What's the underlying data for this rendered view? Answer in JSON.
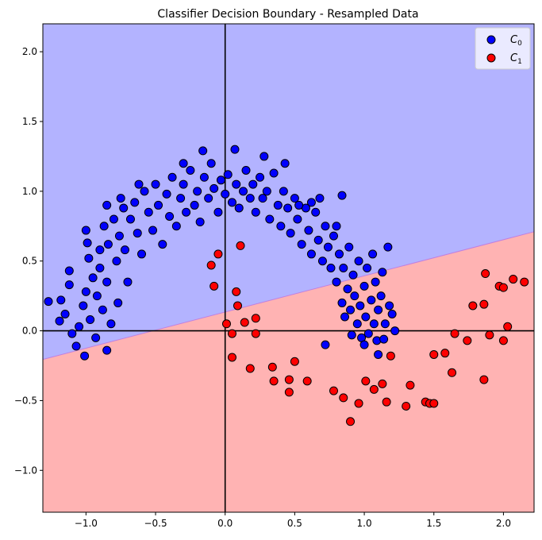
{
  "chart_data": {
    "type": "scatter",
    "title": "Classifier Decision Boundary - Resampled Data",
    "xlabel": "",
    "ylabel": "",
    "xlim": [
      -1.31,
      2.22
    ],
    "ylim": [
      -1.3,
      2.2
    ],
    "xticks": [
      "−1.0",
      "−0.5",
      "0.0",
      "0.5",
      "1.0",
      "1.5",
      "2.0"
    ],
    "xtick_values": [
      -1.0,
      -0.5,
      0.0,
      0.5,
      1.0,
      1.5,
      2.0
    ],
    "yticks": [
      "−1.0",
      "−0.5",
      "0.0",
      "0.5",
      "1.0",
      "1.5",
      "2.0"
    ],
    "ytick_values": [
      -1.0,
      -0.5,
      0.0,
      0.5,
      1.0,
      1.5,
      2.0
    ],
    "grid": false,
    "legend_position": "top-right",
    "decision_boundary": {
      "x": [
        -1.31,
        2.22
      ],
      "y": [
        -0.205,
        0.71
      ]
    },
    "region_colors": {
      "class0": "#b3b3ff",
      "class1": "#ffb3b3"
    },
    "series": [
      {
        "name": "C",
        "subscript": "0",
        "color": "#0000ff",
        "points": [
          [
            -1.27,
            0.21
          ],
          [
            -1.18,
            0.22
          ],
          [
            -1.19,
            0.07
          ],
          [
            -1.15,
            0.12
          ],
          [
            -1.12,
            0.33
          ],
          [
            -1.12,
            0.43
          ],
          [
            -1.1,
            -0.02
          ],
          [
            -1.07,
            -0.11
          ],
          [
            -1.05,
            0.03
          ],
          [
            -1.02,
            0.18
          ],
          [
            -1.01,
            -0.18
          ],
          [
            -1.0,
            0.28
          ],
          [
            -0.98,
            0.52
          ],
          [
            -0.99,
            0.63
          ],
          [
            -1.0,
            0.72
          ],
          [
            -0.97,
            0.08
          ],
          [
            -0.95,
            0.38
          ],
          [
            -0.93,
            -0.05
          ],
          [
            -0.92,
            0.25
          ],
          [
            -0.9,
            0.58
          ],
          [
            -0.9,
            0.45
          ],
          [
            -0.88,
            0.15
          ],
          [
            -0.87,
            0.75
          ],
          [
            -0.85,
            0.35
          ],
          [
            -0.84,
            0.62
          ],
          [
            -0.82,
            0.05
          ],
          [
            -0.8,
            0.8
          ],
          [
            -0.78,
            0.5
          ],
          [
            -0.85,
            -0.14
          ],
          [
            -0.77,
            0.2
          ],
          [
            -0.76,
            0.68
          ],
          [
            -0.75,
            0.95
          ],
          [
            -0.73,
            0.88
          ],
          [
            -0.72,
            0.58
          ],
          [
            -0.7,
            0.35
          ],
          [
            -0.68,
            0.8
          ],
          [
            -0.65,
            0.92
          ],
          [
            -0.63,
            0.7
          ],
          [
            -0.6,
            0.55
          ],
          [
            -0.58,
            1.0
          ],
          [
            -0.55,
            0.85
          ],
          [
            -0.52,
            0.72
          ],
          [
            -0.5,
            1.05
          ],
          [
            -0.48,
            0.9
          ],
          [
            -0.45,
            0.62
          ],
          [
            -0.42,
            0.98
          ],
          [
            -0.4,
            0.82
          ],
          [
            -0.38,
            1.1
          ],
          [
            -0.35,
            0.75
          ],
          [
            -0.32,
            0.95
          ],
          [
            -0.3,
            1.05
          ],
          [
            -0.28,
            0.85
          ],
          [
            -0.25,
            1.15
          ],
          [
            -0.22,
            0.9
          ],
          [
            -0.2,
            1.0
          ],
          [
            -0.18,
            0.78
          ],
          [
            -0.15,
            1.1
          ],
          [
            -0.12,
            0.95
          ],
          [
            -0.1,
            1.2
          ],
          [
            -0.08,
            1.02
          ],
          [
            -0.05,
            0.85
          ],
          [
            -0.03,
            1.08
          ],
          [
            0.0,
            0.98
          ],
          [
            0.02,
            1.12
          ],
          [
            0.05,
            0.92
          ],
          [
            0.07,
            1.3
          ],
          [
            0.08,
            1.05
          ],
          [
            0.1,
            0.88
          ],
          [
            0.13,
            1.0
          ],
          [
            0.15,
            1.15
          ],
          [
            0.18,
            0.95
          ],
          [
            0.2,
            1.05
          ],
          [
            0.22,
            0.85
          ],
          [
            0.25,
            1.1
          ],
          [
            0.27,
            0.95
          ],
          [
            0.3,
            1.0
          ],
          [
            0.32,
            0.8
          ],
          [
            0.35,
            1.13
          ],
          [
            0.38,
            0.9
          ],
          [
            0.4,
            0.75
          ],
          [
            0.42,
            1.0
          ],
          [
            0.45,
            0.88
          ],
          [
            0.47,
            0.7
          ],
          [
            0.5,
            0.95
          ],
          [
            0.52,
            0.8
          ],
          [
            0.55,
            0.62
          ],
          [
            0.58,
            0.88
          ],
          [
            0.6,
            0.72
          ],
          [
            0.62,
            0.55
          ],
          [
            0.65,
            0.85
          ],
          [
            0.67,
            0.65
          ],
          [
            0.7,
            0.5
          ],
          [
            0.72,
            0.75
          ],
          [
            0.74,
            0.6
          ],
          [
            0.76,
            0.45
          ],
          [
            0.78,
            0.68
          ],
          [
            0.8,
            0.35
          ],
          [
            0.82,
            0.55
          ],
          [
            0.84,
            0.2
          ],
          [
            0.85,
            0.45
          ],
          [
            0.86,
            0.1
          ],
          [
            0.88,
            0.3
          ],
          [
            0.89,
            0.6
          ],
          [
            0.9,
            0.15
          ],
          [
            0.91,
            -0.03
          ],
          [
            0.92,
            0.4
          ],
          [
            0.93,
            0.25
          ],
          [
            0.95,
            0.05
          ],
          [
            0.96,
            0.5
          ],
          [
            0.97,
            0.18
          ],
          [
            0.98,
            -0.05
          ],
          [
            1.0,
            0.32
          ],
          [
            1.01,
            0.1
          ],
          [
            1.02,
            0.45
          ],
          [
            1.03,
            -0.02
          ],
          [
            1.05,
            0.22
          ],
          [
            1.06,
            0.55
          ],
          [
            1.07,
            0.05
          ],
          [
            1.08,
            0.35
          ],
          [
            1.09,
            -0.07
          ],
          [
            1.1,
            0.15
          ],
          [
            1.12,
            0.25
          ],
          [
            1.13,
            0.42
          ],
          [
            1.15,
            0.05
          ],
          [
            1.17,
            0.6
          ],
          [
            1.18,
            0.18
          ],
          [
            1.2,
            0.12
          ],
          [
            1.22,
            0.0
          ],
          [
            1.14,
            -0.06
          ],
          [
            1.1,
            -0.17
          ],
          [
            1.0,
            -0.1
          ],
          [
            0.8,
            0.75
          ],
          [
            0.62,
            0.92
          ],
          [
            0.43,
            1.2
          ],
          [
            -0.16,
            1.29
          ],
          [
            0.28,
            1.25
          ],
          [
            -0.3,
            1.2
          ],
          [
            0.53,
            0.9
          ],
          [
            0.68,
            0.95
          ],
          [
            0.84,
            0.97
          ],
          [
            -0.85,
            0.9
          ],
          [
            -0.62,
            1.05
          ],
          [
            0.72,
            -0.1
          ]
        ]
      },
      {
        "name": "C",
        "subscript": "1",
        "color": "#ff0000",
        "points": [
          [
            -0.1,
            0.47
          ],
          [
            -0.05,
            0.55
          ],
          [
            -0.08,
            0.32
          ],
          [
            0.11,
            0.61
          ],
          [
            0.08,
            0.28
          ],
          [
            0.09,
            0.18
          ],
          [
            0.01,
            0.05
          ],
          [
            0.05,
            -0.02
          ],
          [
            0.14,
            0.06
          ],
          [
            0.22,
            0.09
          ],
          [
            0.22,
            -0.02
          ],
          [
            0.05,
            -0.19
          ],
          [
            0.18,
            -0.27
          ],
          [
            0.34,
            -0.26
          ],
          [
            0.35,
            -0.36
          ],
          [
            0.5,
            -0.22
          ],
          [
            0.46,
            -0.35
          ],
          [
            0.46,
            -0.44
          ],
          [
            0.59,
            -0.36
          ],
          [
            0.78,
            -0.43
          ],
          [
            0.85,
            -0.48
          ],
          [
            0.96,
            -0.52
          ],
          [
            0.9,
            -0.65
          ],
          [
            1.01,
            -0.36
          ],
          [
            1.07,
            -0.42
          ],
          [
            1.13,
            -0.38
          ],
          [
            1.16,
            -0.51
          ],
          [
            1.19,
            -0.18
          ],
          [
            1.3,
            -0.54
          ],
          [
            1.33,
            -0.39
          ],
          [
            1.44,
            -0.51
          ],
          [
            1.47,
            -0.52
          ],
          [
            1.5,
            -0.52
          ],
          [
            1.5,
            -0.17
          ],
          [
            1.58,
            -0.16
          ],
          [
            1.63,
            -0.3
          ],
          [
            1.65,
            -0.02
          ],
          [
            1.74,
            -0.07
          ],
          [
            1.78,
            0.18
          ],
          [
            1.86,
            0.19
          ],
          [
            1.87,
            0.41
          ],
          [
            1.86,
            -0.35
          ],
          [
            1.9,
            -0.03
          ],
          [
            1.97,
            0.32
          ],
          [
            2.0,
            0.31
          ],
          [
            2.0,
            -0.07
          ],
          [
            2.03,
            0.03
          ],
          [
            2.07,
            0.37
          ],
          [
            2.15,
            0.35
          ]
        ]
      }
    ]
  }
}
